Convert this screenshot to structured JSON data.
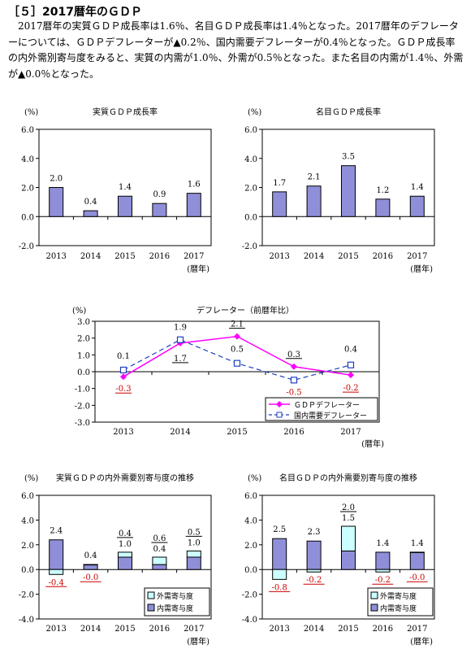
{
  "section": {
    "heading": "［５］2017暦年のＧＤＰ",
    "paragraph": "2017暦年の実質ＧＤＰ成長率は1.6％、名目ＧＤＰ成長率は1.4％となった。2017暦年のデフレーターについては、ＧＤＰデフレーターが▲0.2％、国内需要デフレーターが0.4％となった。ＧＤＰ成長率の内外需別寄与度をみると、実質の内需が1.0％、外需が0.5％となった。また名目の内需が1.4％、外需が▲0.0％となった。"
  },
  "colors": {
    "bar": "#8f8fd9",
    "external": "#ccffff",
    "gdp_deflator": "#ff00ff",
    "domestic_deflator": "#1f3fbf",
    "negative_label": "#cc0000"
  },
  "chart_data": [
    {
      "id": "real-gdp",
      "type": "bar",
      "title": "実質ＧＤＰ成長率",
      "unit": "(%)",
      "x_unit": "(暦年)",
      "categories": [
        "2013",
        "2014",
        "2015",
        "2016",
        "2017"
      ],
      "ylim": [
        -2.0,
        6.0
      ],
      "yticks": [
        -2.0,
        0.0,
        2.0,
        4.0,
        6.0
      ],
      "ytick_labels": [
        "-2.0",
        "0.0",
        "2.0",
        "4.0",
        "6.0"
      ],
      "values": [
        2.0,
        0.4,
        1.4,
        0.9,
        1.6
      ],
      "labels": [
        "2.0",
        "0.4",
        "1.4",
        "0.9",
        "1.6"
      ],
      "grid": false
    },
    {
      "id": "nominal-gdp",
      "type": "bar",
      "title": "名目ＧＤＰ成長率",
      "unit": "(%)",
      "x_unit": "(暦年)",
      "categories": [
        "2013",
        "2014",
        "2015",
        "2016",
        "2017"
      ],
      "ylim": [
        -2.0,
        6.0
      ],
      "yticks": [
        -2.0,
        0.0,
        2.0,
        4.0,
        6.0
      ],
      "ytick_labels": [
        "-2.0",
        "0.0",
        "2.0",
        "4.0",
        "6.0"
      ],
      "values": [
        1.7,
        2.1,
        3.5,
        1.2,
        1.4
      ],
      "labels": [
        "1.7",
        "2.1",
        "3.5",
        "1.2",
        "1.4"
      ],
      "grid": false
    },
    {
      "id": "deflator",
      "type": "line",
      "title": "デフレーター（前暦年比）",
      "unit": "(%)",
      "x_unit": "(暦年)",
      "categories": [
        "2013",
        "2014",
        "2015",
        "2016",
        "2017"
      ],
      "ylim": [
        -3.0,
        3.0
      ],
      "yticks": [
        -3.0,
        -2.0,
        -1.0,
        0.0,
        1.0,
        2.0,
        3.0
      ],
      "ytick_labels": [
        "-3.0",
        "-2.0",
        "-1.0",
        "0.0",
        "1.0",
        "2.0",
        "3.0"
      ],
      "legend_position": "bottom-right",
      "series": [
        {
          "name": "ＧＤＰデフレーター",
          "values": [
            -0.3,
            1.7,
            2.1,
            0.3,
            -0.2
          ],
          "labels": [
            "-0.3",
            "1.7",
            "2.1",
            "0.3",
            "-0.2"
          ],
          "marker": "diamond"
        },
        {
          "name": "国内需要デフレーター",
          "values": [
            0.1,
            1.9,
            0.5,
            -0.5,
            0.4
          ],
          "labels": [
            "0.1",
            "1.9",
            "0.5",
            "-0.5",
            "0.4"
          ],
          "marker": "square"
        }
      ],
      "grid": false
    },
    {
      "id": "real-contribution",
      "type": "bar",
      "stacked": true,
      "title": "実質ＧＤＰの内外需要別寄与度の推移",
      "unit": "(%)",
      "x_unit": "(暦年)",
      "categories": [
        "2013",
        "2014",
        "2015",
        "2016",
        "2017"
      ],
      "ylim": [
        -4.0,
        6.0
      ],
      "yticks": [
        -4.0,
        -2.0,
        0.0,
        2.0,
        4.0,
        6.0
      ],
      "ytick_labels": [
        "-4.0",
        "-2.0",
        "0.0",
        "2.0",
        "4.0",
        "6.0"
      ],
      "legend_position": "bottom-right",
      "series": [
        {
          "name": "外需寄与度",
          "values": [
            -0.4,
            -0.0,
            0.4,
            0.6,
            0.5
          ],
          "labels": [
            "-0.4",
            "-0.0",
            "0.4",
            "0.6",
            "0.5"
          ]
        },
        {
          "name": "内需寄与度",
          "values": [
            2.4,
            0.4,
            1.0,
            0.4,
            1.0
          ],
          "labels": [
            "2.4",
            "0.4",
            "1.0",
            "0.4",
            "1.0"
          ]
        }
      ],
      "grid": false
    },
    {
      "id": "nominal-contribution",
      "type": "bar",
      "stacked": true,
      "title": "名目ＧＤＰの内外需要別寄与度の推移",
      "unit": "(%)",
      "x_unit": "(暦年)",
      "categories": [
        "2013",
        "2014",
        "2015",
        "2016",
        "2017"
      ],
      "ylim": [
        -4.0,
        6.0
      ],
      "yticks": [
        -4.0,
        -2.0,
        0.0,
        2.0,
        4.0,
        6.0
      ],
      "ytick_labels": [
        "-4.0",
        "-2.0",
        "0.0",
        "2.0",
        "4.0",
        "6.0"
      ],
      "legend_position": "bottom-right",
      "series": [
        {
          "name": "外需寄与度",
          "values": [
            -0.8,
            -0.2,
            2.0,
            -0.2,
            -0.0
          ],
          "labels": [
            "-0.8",
            "-0.2",
            "2.0",
            "-0.2",
            "-0.0"
          ]
        },
        {
          "name": "内需寄与度",
          "values": [
            2.5,
            2.3,
            1.5,
            1.4,
            1.4
          ],
          "labels": [
            "2.5",
            "2.3",
            "1.5",
            "1.4",
            "1.4"
          ]
        }
      ],
      "grid": false
    }
  ]
}
